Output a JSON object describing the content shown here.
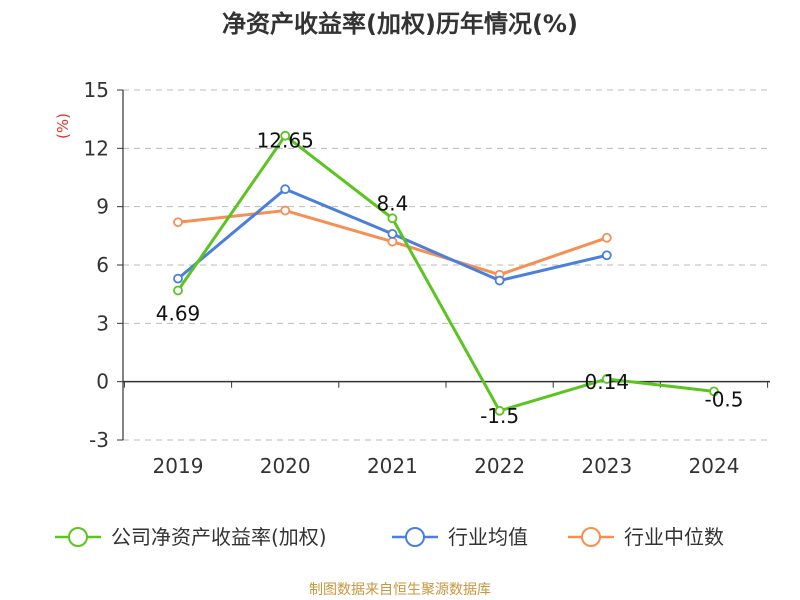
{
  "chart_data": {
    "type": "line",
    "title": "净资产收益率(加权)历年情况(%)",
    "ylabel": "(%)",
    "xlabel": "",
    "categories": [
      "2019",
      "2020",
      "2021",
      "2022",
      "2023",
      "2024"
    ],
    "ylim": [
      -3,
      15
    ],
    "yticks": [
      -3,
      0,
      3,
      6,
      9,
      12,
      15
    ],
    "grid": true,
    "legend_position": "bottom",
    "series": [
      {
        "name": "公司净资产收益率(加权)",
        "color": "#5cc421",
        "values": [
          4.69,
          12.65,
          8.4,
          -1.5,
          0.14,
          -0.5
        ],
        "labels": [
          "4.69",
          "12.65",
          "8.4",
          "-1.5",
          "0.14",
          "-0.5"
        ]
      },
      {
        "name": "行业均值",
        "color": "#4b7fdc",
        "values": [
          5.3,
          9.9,
          7.6,
          5.2,
          6.5,
          null
        ]
      },
      {
        "name": "行业中位数",
        "color": "#f68f54",
        "values": [
          8.2,
          8.8,
          7.2,
          5.5,
          7.4,
          null
        ]
      }
    ],
    "source": "制图数据来自恒生聚源数据库"
  }
}
